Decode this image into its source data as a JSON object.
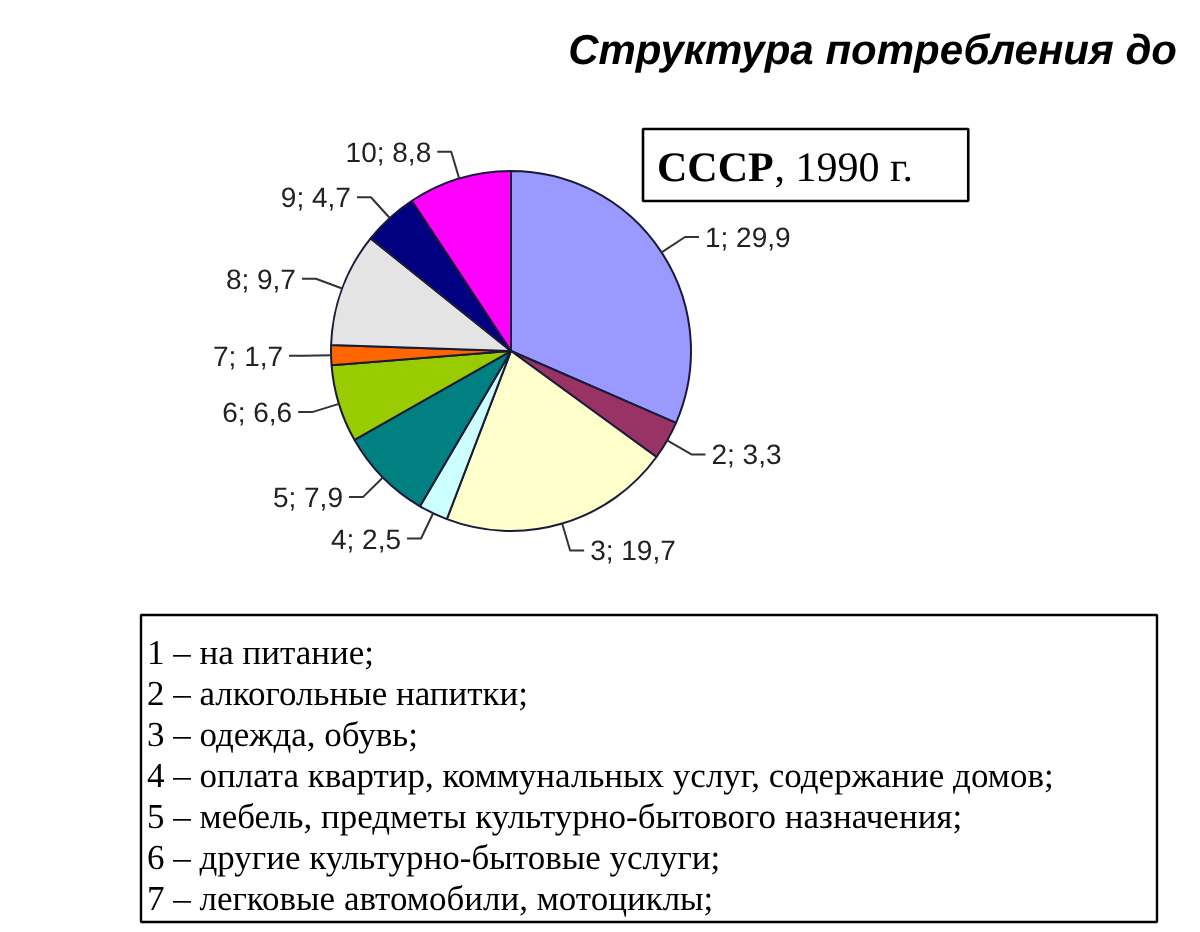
{
  "chart_data": {
    "type": "pie",
    "title": "Структура потребления до",
    "subtitle": "СССР, 1990 г.",
    "categories": [
      "1",
      "2",
      "3",
      "4",
      "5",
      "6",
      "7",
      "8",
      "9",
      "10"
    ],
    "values": [
      29.9,
      3.3,
      19.7,
      2.5,
      7.9,
      6.6,
      1.7,
      9.7,
      4.7,
      8.8
    ],
    "value_labels": [
      "29,9",
      "3,3",
      "19,7",
      "2,5",
      "7,9",
      "6,6",
      "1,7",
      "9,7",
      "4,7",
      "8,8"
    ],
    "colors": [
      "#9999ff",
      "#993366",
      "#ffffcc",
      "#ccffff",
      "#008080",
      "#99cc00",
      "#ff6600",
      "#e4e4e4",
      "#000080",
      "#ff00ff"
    ],
    "annotations": [
      "1 – на питание;",
      "2 – алкогольные напитки;",
      "3 – одежда, обувь;",
      "4 – оплата квартир, коммунальных услуг, содержание домов;",
      "5 – мебель, предметы культурно-бытового назначения;",
      "6 – другие культурно-бытовые услуги;",
      "7 – легковые автомобили, мотоциклы;"
    ]
  }
}
